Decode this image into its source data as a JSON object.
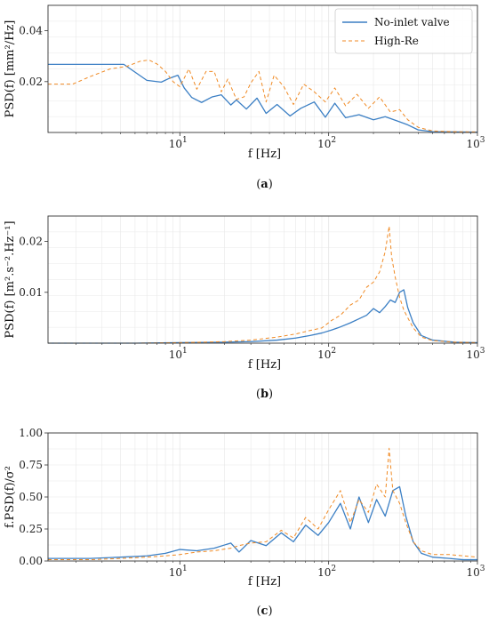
{
  "colors": {
    "series1": "#3b7fc4",
    "series2": "#f08a24",
    "grid": "#e8e8e8",
    "axis": "#333333"
  },
  "legend": {
    "items": [
      "No-inlet valve",
      "High-Re"
    ],
    "placement": "top-right"
  },
  "chart_data": [
    {
      "type": "line",
      "panel": "(a)",
      "panel_letter": "a",
      "xlabel": "f [Hz]",
      "ylabel": "PSD(f) [mm²/Hz]",
      "x_scale": "log",
      "xlim": [
        1.3,
        1000
      ],
      "ylim": [
        0.0,
        0.05
      ],
      "x_ticks": [
        "10¹",
        "10²",
        "10³"
      ],
      "y_ticks": [
        "0.02",
        "0.04"
      ],
      "grid": true,
      "series": [
        {
          "name": "No-inlet valve",
          "x": [
            1.3,
            4.2,
            6.0,
            7.5,
            8.5,
            9.7,
            10.7,
            12.0,
            14.0,
            16.5,
            19.0,
            22.0,
            24.0,
            28.0,
            33.0,
            38.0,
            45.0,
            55.0,
            65.0,
            80.0,
            95.0,
            110.0,
            130.0,
            160.0,
            200.0,
            240.0,
            290.0,
            340.0,
            400.0,
            500.0,
            700.0,
            1000.0
          ],
          "y": [
            0.0268,
            0.0268,
            0.0205,
            0.0198,
            0.0213,
            0.0225,
            0.0175,
            0.0138,
            0.0118,
            0.014,
            0.0148,
            0.0108,
            0.0128,
            0.0092,
            0.0135,
            0.0075,
            0.011,
            0.0065,
            0.0095,
            0.012,
            0.006,
            0.0115,
            0.0058,
            0.007,
            0.005,
            0.0062,
            0.0045,
            0.003,
            0.001,
            0.0003,
            0.0002,
            0.0001
          ]
        },
        {
          "name": "High-Re",
          "x": [
            1.3,
            1.9,
            2.5,
            3.4,
            4.4,
            5.4,
            6.2,
            7.0,
            8.0,
            9.0,
            10.0,
            11.5,
            13.0,
            15.0,
            17.0,
            19.0,
            21.0,
            24.0,
            27.0,
            30.0,
            34.0,
            38.0,
            43.0,
            50.0,
            58.0,
            68.0,
            80.0,
            95.0,
            110.0,
            130.0,
            155.0,
            185.0,
            220.0,
            260.0,
            300.0,
            340.0,
            400.0,
            500.0,
            700.0,
            1000.0
          ],
          "y": [
            0.019,
            0.019,
            0.022,
            0.025,
            0.026,
            0.028,
            0.0285,
            0.027,
            0.024,
            0.02,
            0.018,
            0.025,
            0.017,
            0.024,
            0.024,
            0.016,
            0.021,
            0.013,
            0.014,
            0.0195,
            0.024,
            0.012,
            0.0225,
            0.018,
            0.011,
            0.019,
            0.016,
            0.012,
            0.0175,
            0.0105,
            0.015,
            0.0095,
            0.014,
            0.008,
            0.009,
            0.005,
            0.002,
            0.0006,
            0.0003,
            0.0002
          ]
        }
      ]
    },
    {
      "type": "line",
      "panel": "(b)",
      "panel_letter": "b",
      "xlabel": "f [Hz]",
      "ylabel": "PSD(f) [m².s⁻².Hz⁻¹]",
      "x_scale": "log",
      "xlim": [
        1.3,
        1000
      ],
      "ylim": [
        0.0,
        0.025
      ],
      "x_ticks": [
        "10¹",
        "10²",
        "10³"
      ],
      "y_ticks": [
        "0.01",
        "0.02"
      ],
      "grid": true,
      "series": [
        {
          "name": "No-inlet valve",
          "x": [
            1.3,
            5.0,
            10.0,
            20.0,
            30.0,
            45.0,
            60.0,
            75.0,
            90.0,
            105.0,
            120.0,
            140.0,
            160.0,
            180.0,
            200.0,
            220.0,
            240.0,
            260.0,
            280.0,
            300.0,
            320.0,
            340.0,
            370.0,
            420.0,
            500.0,
            700.0,
            1000.0
          ],
          "y": [
            0.0,
            0.0,
            0.0001,
            0.0002,
            0.0003,
            0.0006,
            0.001,
            0.0015,
            0.002,
            0.0026,
            0.0032,
            0.004,
            0.0048,
            0.0055,
            0.0068,
            0.006,
            0.0072,
            0.0085,
            0.008,
            0.01,
            0.0105,
            0.007,
            0.004,
            0.0015,
            0.0006,
            0.0002,
            0.0001
          ]
        },
        {
          "name": "High-Re",
          "x": [
            1.3,
            5.0,
            10.0,
            20.0,
            30.0,
            45.0,
            60.0,
            75.0,
            90.0,
            105.0,
            120.0,
            140.0,
            160.0,
            180.0,
            200.0,
            220.0,
            240.0,
            255.0,
            265.0,
            280.0,
            300.0,
            320.0,
            340.0,
            370.0,
            420.0,
            500.0,
            700.0,
            1000.0
          ],
          "y": [
            0.0,
            0.0,
            0.0001,
            0.0003,
            0.0006,
            0.0012,
            0.0018,
            0.0025,
            0.003,
            0.0045,
            0.0055,
            0.0075,
            0.0085,
            0.011,
            0.012,
            0.014,
            0.018,
            0.023,
            0.017,
            0.013,
            0.009,
            0.0065,
            0.005,
            0.003,
            0.0012,
            0.0005,
            0.0002,
            0.0001
          ]
        }
      ]
    },
    {
      "type": "line",
      "panel": "(c)",
      "panel_letter": "c",
      "xlabel": "f [Hz]",
      "ylabel": "f.PSD(f)/σ²",
      "x_scale": "log",
      "xlim": [
        1.3,
        1000
      ],
      "ylim": [
        0.0,
        1.0
      ],
      "x_ticks": [
        "10¹",
        "10²",
        "10³"
      ],
      "y_ticks": [
        "0.00",
        "0.25",
        "0.50",
        "0.75",
        "1.00"
      ],
      "grid": true,
      "series": [
        {
          "name": "No-inlet valve",
          "x": [
            1.3,
            2.5,
            4.0,
            6.0,
            8.0,
            10.0,
            13.0,
            17.0,
            22.0,
            25.0,
            30.0,
            38.0,
            48.0,
            58.0,
            70.0,
            85.0,
            100.0,
            120.0,
            140.0,
            160.0,
            185.0,
            210.0,
            240.0,
            270.0,
            300.0,
            330.0,
            370.0,
            420.0,
            500.0,
            650.0,
            800.0,
            1000.0
          ],
          "y": [
            0.02,
            0.02,
            0.03,
            0.04,
            0.06,
            0.09,
            0.08,
            0.1,
            0.14,
            0.07,
            0.16,
            0.12,
            0.22,
            0.15,
            0.28,
            0.2,
            0.3,
            0.45,
            0.25,
            0.5,
            0.3,
            0.48,
            0.35,
            0.55,
            0.58,
            0.35,
            0.15,
            0.06,
            0.03,
            0.02,
            0.01,
            0.01
          ]
        },
        {
          "name": "High-Re",
          "x": [
            1.3,
            2.5,
            4.0,
            6.0,
            8.0,
            10.0,
            13.0,
            17.0,
            22.0,
            25.0,
            30.0,
            38.0,
            48.0,
            58.0,
            70.0,
            85.0,
            100.0,
            120.0,
            140.0,
            160.0,
            185.0,
            210.0,
            240.0,
            255.0,
            270.0,
            300.0,
            330.0,
            370.0,
            420.0,
            500.0,
            650.0,
            800.0,
            1000.0
          ],
          "y": [
            0.01,
            0.01,
            0.02,
            0.03,
            0.04,
            0.05,
            0.07,
            0.08,
            0.1,
            0.12,
            0.14,
            0.15,
            0.24,
            0.18,
            0.34,
            0.25,
            0.4,
            0.55,
            0.3,
            0.48,
            0.38,
            0.6,
            0.5,
            0.88,
            0.55,
            0.45,
            0.3,
            0.15,
            0.08,
            0.05,
            0.05,
            0.04,
            0.03
          ]
        }
      ]
    }
  ]
}
